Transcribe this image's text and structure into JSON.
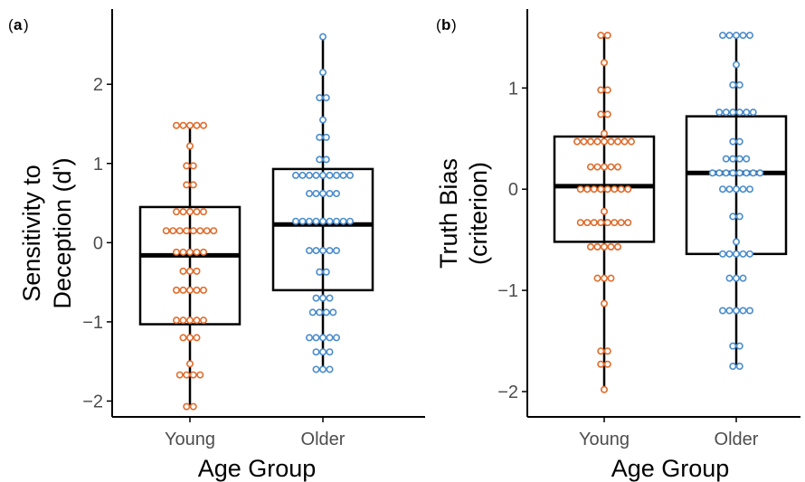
{
  "colors": {
    "young": "#e06c2c",
    "older": "#4a8ccc",
    "box": "#000000",
    "axis": "#000000",
    "tick_text": "#4d4d4d"
  },
  "chart_data": [
    {
      "type": "box",
      "panel_label": "a",
      "xlabel": "Age Group",
      "ylabel_lines": [
        "Sensitivity to",
        "Deception (d')"
      ],
      "categories": [
        "Young",
        "Older"
      ],
      "ylim": [
        -2.2,
        2.95
      ],
      "yticks": [
        -2,
        -1,
        0,
        1,
        2
      ],
      "ytick_labels": [
        "−2",
        "−1",
        "0",
        "1",
        "2"
      ],
      "grid": false,
      "boxes": [
        {
          "group": "Young",
          "q1": -1.03,
          "median": -0.16,
          "q3": 0.45,
          "whisker_low": -2.07,
          "whisker_high": 1.48
        },
        {
          "group": "Older",
          "q1": -0.6,
          "median": 0.23,
          "q3": 0.93,
          "whisker_low": -1.6,
          "whisker_high": 2.6
        }
      ],
      "points": [
        {
          "group": "Young",
          "values": [
            1.48,
            1.48,
            1.48,
            1.48,
            1.48,
            1.22,
            0.97,
            0.97,
            0.73,
            0.73,
            0.39,
            0.39,
            0.39,
            0.39,
            0.39,
            0.15,
            0.15,
            0.15,
            0.15,
            0.15,
            0.15,
            0.15,
            0.15,
            -0.12,
            -0.12,
            -0.12,
            -0.12,
            -0.12,
            -0.36,
            -0.36,
            -0.36,
            -0.6,
            -0.6,
            -0.6,
            -0.6,
            -0.6,
            -0.98,
            -0.98,
            -0.98,
            -0.98,
            -0.98,
            -1.2,
            -1.2,
            -1.2,
            -1.53,
            -1.67,
            -1.67,
            -1.67,
            -1.67,
            -2.07,
            -2.07
          ]
        },
        {
          "group": "Older",
          "values": [
            2.6,
            2.15,
            1.83,
            1.83,
            1.55,
            1.33,
            1.33,
            1.05,
            1.05,
            0.85,
            0.85,
            0.85,
            0.85,
            0.85,
            0.85,
            0.85,
            0.85,
            0.85,
            0.62,
            0.62,
            0.62,
            0.62,
            0.62,
            0.27,
            0.27,
            0.27,
            0.27,
            0.27,
            0.27,
            0.27,
            0.27,
            0.27,
            -0.1,
            -0.1,
            -0.1,
            -0.1,
            -0.1,
            -0.37,
            -0.37,
            -0.7,
            -0.7,
            -0.7,
            -0.88,
            -0.88,
            -0.88,
            -0.88,
            -1.2,
            -1.2,
            -1.2,
            -1.2,
            -1.2,
            -1.38,
            -1.38,
            -1.38,
            -1.6,
            -1.6,
            -1.6
          ]
        }
      ]
    },
    {
      "type": "box",
      "panel_label": "b",
      "xlabel": "Age Group",
      "ylabel_lines": [
        "Truth Bias",
        "(criterion)"
      ],
      "categories": [
        "Young",
        "Older"
      ],
      "ylim": [
        -2.25,
        1.78
      ],
      "yticks": [
        -2,
        -1,
        0,
        1
      ],
      "ytick_labels": [
        "−2",
        "−1",
        "0",
        "1"
      ],
      "grid": false,
      "boxes": [
        {
          "group": "Young",
          "q1": -0.52,
          "median": 0.03,
          "q3": 0.52,
          "whisker_low": -1.98,
          "whisker_high": 1.52
        },
        {
          "group": "Older",
          "q1": -0.64,
          "median": 0.16,
          "q3": 0.72,
          "whisker_low": -1.75,
          "whisker_high": 1.52
        }
      ],
      "points": [
        {
          "group": "Young",
          "values": [
            1.52,
            1.52,
            1.25,
            0.98,
            0.98,
            0.74,
            0.74,
            0.55,
            0.47,
            0.47,
            0.47,
            0.47,
            0.47,
            0.47,
            0.47,
            0.47,
            0.47,
            0.22,
            0.22,
            0.22,
            0.22,
            0.22,
            0.0,
            0.0,
            0.0,
            0.0,
            0.0,
            0.0,
            0.0,
            0.0,
            -0.22,
            -0.33,
            -0.33,
            -0.33,
            -0.33,
            -0.33,
            -0.33,
            -0.33,
            -0.33,
            -0.57,
            -0.57,
            -0.57,
            -0.57,
            -0.57,
            -0.88,
            -0.88,
            -0.88,
            -1.13,
            -1.6,
            -1.6,
            -1.73,
            -1.73,
            -1.98
          ]
        },
        {
          "group": "Older",
          "values": [
            1.52,
            1.52,
            1.52,
            1.52,
            1.52,
            1.23,
            1.03,
            1.03,
            0.76,
            0.76,
            0.76,
            0.76,
            0.76,
            0.76,
            0.47,
            0.47,
            0.3,
            0.3,
            0.3,
            0.3,
            0.16,
            0.16,
            0.16,
            0.16,
            0.16,
            0.16,
            0.16,
            0.16,
            0.0,
            0.0,
            0.0,
            0.0,
            0.0,
            -0.27,
            -0.27,
            -0.52,
            -0.64,
            -0.64,
            -0.64,
            -0.64,
            -0.64,
            -0.88,
            -0.88,
            -0.88,
            -1.2,
            -1.2,
            -1.2,
            -1.2,
            -1.2,
            -1.55,
            -1.55,
            -1.75,
            -1.75
          ]
        }
      ]
    }
  ]
}
